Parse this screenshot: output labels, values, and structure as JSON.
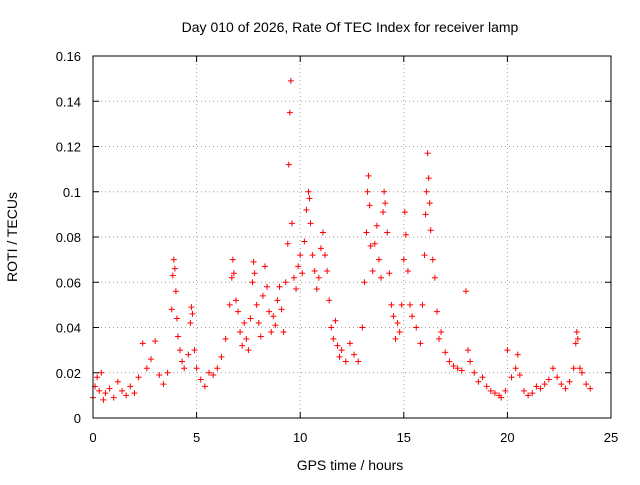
{
  "chart_data": {
    "type": "scatter",
    "title": "Day 010 of 2026, Rate Of TEC Index for receiver lamp",
    "xlabel": "GPS time / hours",
    "ylabel": "ROTI / TECUs",
    "xlim": [
      0,
      25
    ],
    "ylim": [
      0,
      0.16
    ],
    "x_ticks": [
      "0",
      "5",
      "10",
      "15",
      "20",
      "25"
    ],
    "y_ticks": [
      "0",
      "0.02",
      "0.04",
      "0.06",
      "0.08",
      "0.1",
      "0.12",
      "0.14",
      "0.16"
    ],
    "grid": true,
    "marker": "+",
    "colors": {
      "series": "#ff0000",
      "grid": "#a0a0a0",
      "axes": "#000000"
    },
    "series": [
      {
        "name": "",
        "points": [
          [
            0.0,
            0.009
          ],
          [
            0.1,
            0.014
          ],
          [
            0.2,
            0.018
          ],
          [
            0.3,
            0.012
          ],
          [
            0.4,
            0.02
          ],
          [
            0.5,
            0.008
          ],
          [
            0.6,
            0.011
          ],
          [
            0.8,
            0.013
          ],
          [
            1.0,
            0.009
          ],
          [
            1.2,
            0.016
          ],
          [
            1.4,
            0.012
          ],
          [
            1.6,
            0.01
          ],
          [
            1.8,
            0.014
          ],
          [
            2.0,
            0.011
          ],
          [
            2.2,
            0.018
          ],
          [
            2.4,
            0.033
          ],
          [
            2.6,
            0.022
          ],
          [
            2.8,
            0.026
          ],
          [
            3.0,
            0.034
          ],
          [
            3.2,
            0.019
          ],
          [
            3.4,
            0.015
          ],
          [
            3.6,
            0.02
          ],
          [
            3.8,
            0.048
          ],
          [
            3.85,
            0.063
          ],
          [
            3.9,
            0.07
          ],
          [
            3.95,
            0.066
          ],
          [
            4.0,
            0.056
          ],
          [
            4.05,
            0.044
          ],
          [
            4.1,
            0.036
          ],
          [
            4.2,
            0.03
          ],
          [
            4.3,
            0.025
          ],
          [
            4.4,
            0.022
          ],
          [
            4.6,
            0.028
          ],
          [
            4.7,
            0.042
          ],
          [
            4.75,
            0.049
          ],
          [
            4.8,
            0.046
          ],
          [
            4.9,
            0.03
          ],
          [
            5.0,
            0.022
          ],
          [
            5.2,
            0.017
          ],
          [
            5.4,
            0.014
          ],
          [
            5.6,
            0.02
          ],
          [
            5.8,
            0.019
          ],
          [
            6.0,
            0.022
          ],
          [
            6.2,
            0.027
          ],
          [
            6.4,
            0.035
          ],
          [
            6.6,
            0.05
          ],
          [
            6.7,
            0.062
          ],
          [
            6.75,
            0.07
          ],
          [
            6.8,
            0.064
          ],
          [
            6.9,
            0.052
          ],
          [
            7.0,
            0.047
          ],
          [
            7.1,
            0.038
          ],
          [
            7.2,
            0.032
          ],
          [
            7.3,
            0.042
          ],
          [
            7.4,
            0.035
          ],
          [
            7.5,
            0.03
          ],
          [
            7.6,
            0.044
          ],
          [
            7.7,
            0.06
          ],
          [
            7.75,
            0.069
          ],
          [
            7.8,
            0.064
          ],
          [
            7.9,
            0.05
          ],
          [
            8.0,
            0.042
          ],
          [
            8.1,
            0.036
          ],
          [
            8.2,
            0.054
          ],
          [
            8.3,
            0.067
          ],
          [
            8.4,
            0.058
          ],
          [
            8.5,
            0.047
          ],
          [
            8.6,
            0.038
          ],
          [
            8.7,
            0.045
          ],
          [
            8.8,
            0.041
          ],
          [
            8.9,
            0.052
          ],
          [
            9.0,
            0.058
          ],
          [
            9.1,
            0.048
          ],
          [
            9.2,
            0.038
          ],
          [
            9.3,
            0.06
          ],
          [
            9.4,
            0.077
          ],
          [
            9.45,
            0.112
          ],
          [
            9.5,
            0.135
          ],
          [
            9.55,
            0.149
          ],
          [
            9.6,
            0.086
          ],
          [
            9.7,
            0.062
          ],
          [
            9.8,
            0.057
          ],
          [
            9.9,
            0.067
          ],
          [
            10.0,
            0.072
          ],
          [
            10.1,
            0.064
          ],
          [
            10.2,
            0.078
          ],
          [
            10.3,
            0.092
          ],
          [
            10.4,
            0.1
          ],
          [
            10.45,
            0.097
          ],
          [
            10.5,
            0.086
          ],
          [
            10.6,
            0.072
          ],
          [
            10.7,
            0.065
          ],
          [
            10.8,
            0.057
          ],
          [
            10.9,
            0.062
          ],
          [
            11.0,
            0.075
          ],
          [
            11.1,
            0.082
          ],
          [
            11.2,
            0.072
          ],
          [
            11.3,
            0.065
          ],
          [
            11.4,
            0.052
          ],
          [
            11.5,
            0.04
          ],
          [
            11.6,
            0.035
          ],
          [
            11.7,
            0.043
          ],
          [
            11.8,
            0.032
          ],
          [
            11.9,
            0.027
          ],
          [
            12.0,
            0.03
          ],
          [
            12.2,
            0.025
          ],
          [
            12.4,
            0.033
          ],
          [
            12.6,
            0.028
          ],
          [
            12.8,
            0.025
          ],
          [
            13.0,
            0.04
          ],
          [
            13.1,
            0.06
          ],
          [
            13.2,
            0.082
          ],
          [
            13.25,
            0.1
          ],
          [
            13.3,
            0.107
          ],
          [
            13.35,
            0.094
          ],
          [
            13.4,
            0.076
          ],
          [
            13.5,
            0.065
          ],
          [
            13.6,
            0.077
          ],
          [
            13.7,
            0.085
          ],
          [
            13.8,
            0.07
          ],
          [
            13.9,
            0.062
          ],
          [
            14.0,
            0.091
          ],
          [
            14.05,
            0.1
          ],
          [
            14.1,
            0.095
          ],
          [
            14.2,
            0.082
          ],
          [
            14.3,
            0.064
          ],
          [
            14.4,
            0.05
          ],
          [
            14.5,
            0.045
          ],
          [
            14.6,
            0.035
          ],
          [
            14.7,
            0.042
          ],
          [
            14.8,
            0.038
          ],
          [
            14.9,
            0.05
          ],
          [
            15.0,
            0.07
          ],
          [
            15.05,
            0.091
          ],
          [
            15.1,
            0.081
          ],
          [
            15.2,
            0.065
          ],
          [
            15.3,
            0.05
          ],
          [
            15.4,
            0.045
          ],
          [
            15.6,
            0.04
          ],
          [
            15.8,
            0.033
          ],
          [
            15.9,
            0.05
          ],
          [
            16.0,
            0.072
          ],
          [
            16.05,
            0.09
          ],
          [
            16.1,
            0.1
          ],
          [
            16.15,
            0.117
          ],
          [
            16.2,
            0.106
          ],
          [
            16.25,
            0.095
          ],
          [
            16.3,
            0.083
          ],
          [
            16.4,
            0.07
          ],
          [
            16.5,
            0.062
          ],
          [
            16.6,
            0.047
          ],
          [
            16.7,
            0.035
          ],
          [
            16.8,
            0.038
          ],
          [
            17.0,
            0.029
          ],
          [
            17.2,
            0.025
          ],
          [
            17.4,
            0.023
          ],
          [
            17.6,
            0.022
          ],
          [
            17.8,
            0.021
          ],
          [
            18.0,
            0.056
          ],
          [
            18.1,
            0.03
          ],
          [
            18.2,
            0.025
          ],
          [
            18.4,
            0.02
          ],
          [
            18.6,
            0.016
          ],
          [
            18.8,
            0.018
          ],
          [
            19.0,
            0.014
          ],
          [
            19.2,
            0.012
          ],
          [
            19.4,
            0.011
          ],
          [
            19.6,
            0.01
          ],
          [
            19.7,
            0.009
          ],
          [
            19.9,
            0.012
          ],
          [
            20.0,
            0.03
          ],
          [
            20.2,
            0.018
          ],
          [
            20.4,
            0.022
          ],
          [
            20.5,
            0.028
          ],
          [
            20.6,
            0.019
          ],
          [
            20.8,
            0.012
          ],
          [
            21.0,
            0.01
          ],
          [
            21.2,
            0.011
          ],
          [
            21.4,
            0.014
          ],
          [
            21.6,
            0.013
          ],
          [
            21.8,
            0.015
          ],
          [
            22.0,
            0.017
          ],
          [
            22.2,
            0.022
          ],
          [
            22.4,
            0.018
          ],
          [
            22.6,
            0.015
          ],
          [
            22.8,
            0.013
          ],
          [
            23.0,
            0.016
          ],
          [
            23.2,
            0.022
          ],
          [
            23.3,
            0.033
          ],
          [
            23.35,
            0.038
          ],
          [
            23.4,
            0.035
          ],
          [
            23.5,
            0.022
          ],
          [
            23.6,
            0.02
          ],
          [
            23.8,
            0.015
          ],
          [
            24.0,
            0.013
          ]
        ]
      }
    ]
  }
}
